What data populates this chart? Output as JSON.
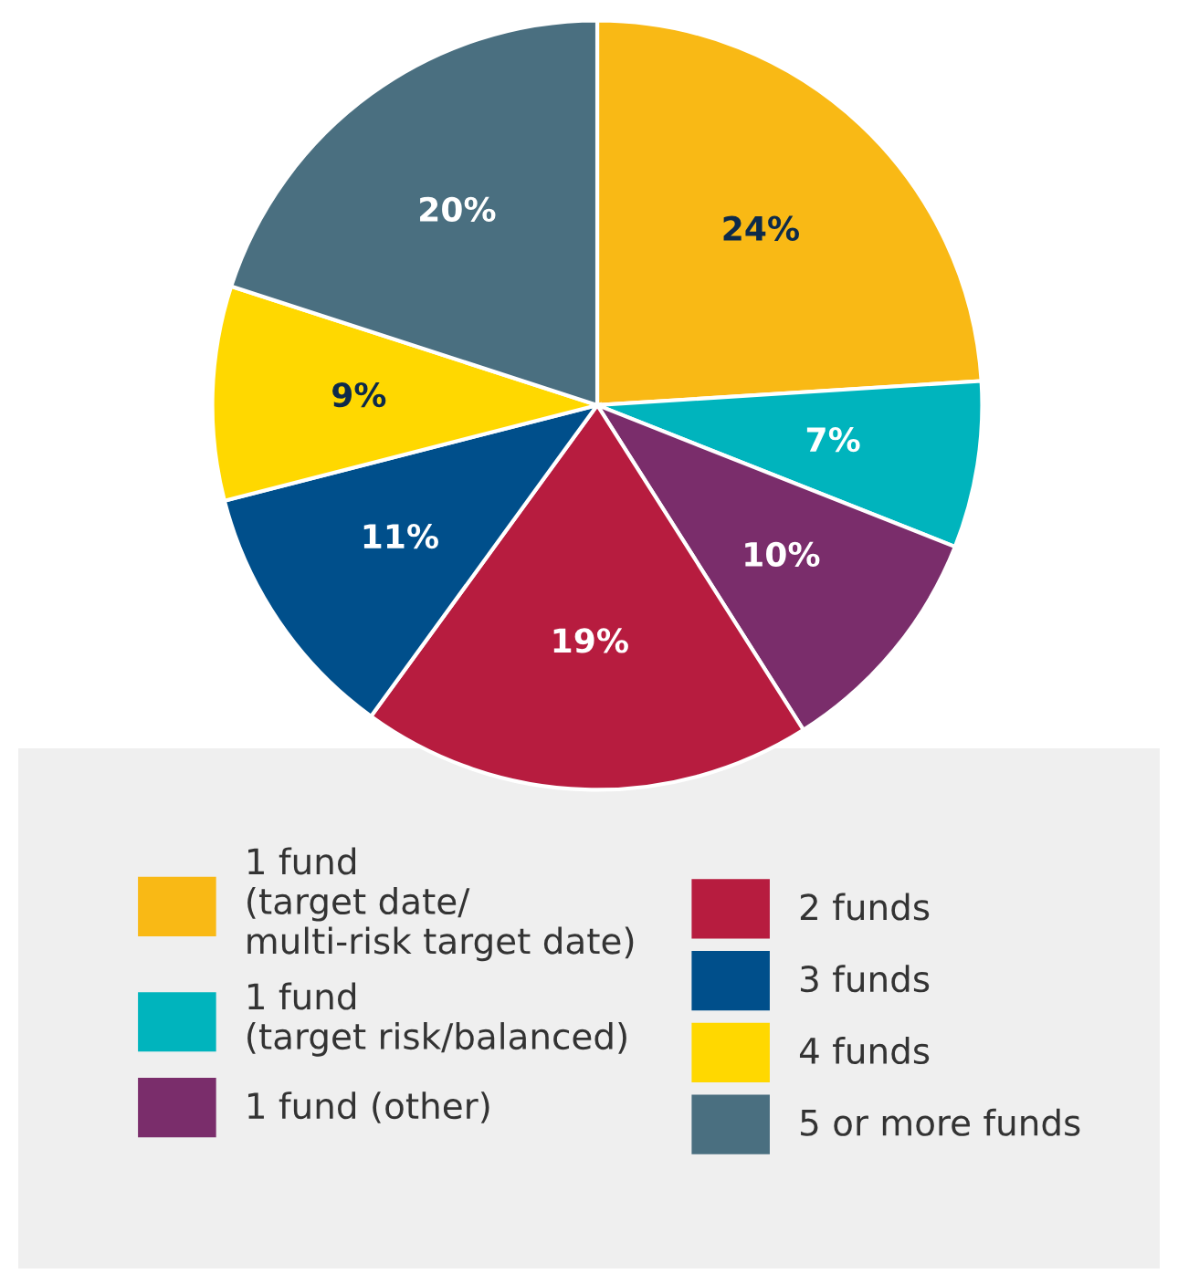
{
  "chart_data": {
    "type": "pie",
    "categories": [
      "1 fund\n(target date/\nmulti-risk target date)",
      "1 fund\n(target risk/balanced)",
      "1 fund (other)",
      "2 funds",
      "3 funds",
      "4 funds",
      "5 or more funds"
    ],
    "values": [
      24,
      7,
      10,
      19,
      11,
      9,
      20
    ],
    "colors": [
      "#f9b915",
      "#00b4bd",
      "#7a2d6b",
      "#b71c3f",
      "#004f8b",
      "#ffd800",
      "#4a6f80"
    ],
    "value_labels": [
      "24%",
      "7%",
      "10%",
      "19%",
      "11%",
      "9%",
      "20%"
    ],
    "legend": "bottom"
  }
}
